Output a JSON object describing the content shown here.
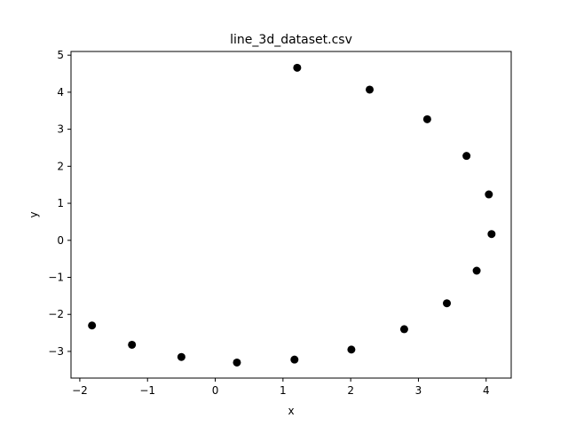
{
  "chart_data": {
    "type": "scatter",
    "title": "line_3d_dataset.csv",
    "xlabel": "x",
    "ylabel": "y",
    "xlim": [
      -2.13,
      4.37
    ],
    "ylim": [
      -3.72,
      5.1
    ],
    "xticks": [
      -2,
      -1,
      0,
      1,
      2,
      3,
      4
    ],
    "yticks": [
      -3,
      -2,
      -1,
      0,
      1,
      2,
      3,
      4,
      5
    ],
    "grid": false,
    "marker_color": "#000000",
    "points": [
      {
        "x": -1.82,
        "y": -2.3
      },
      {
        "x": -1.23,
        "y": -2.82
      },
      {
        "x": -0.5,
        "y": -3.15
      },
      {
        "x": 0.32,
        "y": -3.3
      },
      {
        "x": 1.17,
        "y": -3.22
      },
      {
        "x": 2.01,
        "y": -2.95
      },
      {
        "x": 2.79,
        "y": -2.4
      },
      {
        "x": 3.42,
        "y": -1.7
      },
      {
        "x": 3.86,
        "y": -0.82
      },
      {
        "x": 4.08,
        "y": 0.17
      },
      {
        "x": 4.04,
        "y": 1.24
      },
      {
        "x": 3.71,
        "y": 2.28
      },
      {
        "x": 3.13,
        "y": 3.27
      },
      {
        "x": 2.28,
        "y": 4.07
      },
      {
        "x": 1.21,
        "y": 4.66
      }
    ]
  }
}
